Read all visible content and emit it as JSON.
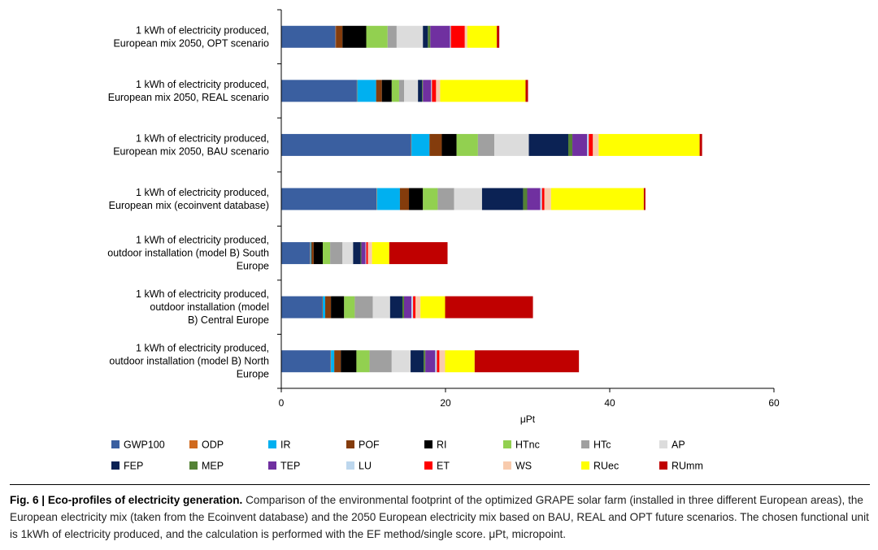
{
  "chart_data": {
    "type": "bar",
    "orientation": "horizontal",
    "stacked": true,
    "xlabel": "μPt",
    "xlim": [
      0,
      60
    ],
    "xticks": [
      0,
      20,
      40,
      60
    ],
    "grid": false,
    "legend_position": "bottom",
    "categories": [
      [
        "1 kWh of electricity produced,",
        "European mix 2050, OPT scenario"
      ],
      [
        "1 kWh of electricity produced,",
        "European mix 2050, REAL scenario"
      ],
      [
        "1 kWh of electricity produced,",
        "European mix 2050, BAU scenario"
      ],
      [
        "1 kWh of electricity produced,",
        "European mix (ecoinvent database)"
      ],
      [
        "1 kWh of electricity produced,",
        "outdoor installation (model B) South",
        "Europe"
      ],
      [
        "1 kWh of electricity produced,",
        "outdoor installation (model",
        "B) Central Europe"
      ],
      [
        "1 kWh of electricity produced,",
        "outdoor installation (model B) North",
        "Europe"
      ]
    ],
    "series": [
      {
        "name": "GWP100",
        "color": "#3a5fa0",
        "values": [
          6.6,
          9.2,
          15.8,
          11.6,
          3.5,
          5.0,
          6.0
        ]
      },
      {
        "name": "ODP",
        "color": "#d06a1e",
        "values": [
          0.05,
          0.05,
          0.05,
          0.05,
          0.05,
          0.05,
          0.05
        ]
      },
      {
        "name": "IR",
        "color": "#00b0f0",
        "values": [
          0.0,
          2.3,
          2.2,
          2.8,
          0.1,
          0.3,
          0.4
        ]
      },
      {
        "name": "POF",
        "color": "#843c0c",
        "values": [
          0.8,
          0.7,
          1.5,
          1.1,
          0.3,
          0.7,
          0.8
        ]
      },
      {
        "name": "RI",
        "color": "#000000",
        "values": [
          2.9,
          1.2,
          1.8,
          1.7,
          1.1,
          1.6,
          1.9
        ]
      },
      {
        "name": "HTnc",
        "color": "#92d050",
        "values": [
          2.6,
          0.9,
          2.6,
          1.8,
          0.9,
          1.3,
          1.6
        ]
      },
      {
        "name": "HTc",
        "color": "#a0a0a0",
        "values": [
          1.1,
          0.6,
          2.0,
          2.0,
          1.5,
          2.2,
          2.7
        ]
      },
      {
        "name": "AP",
        "color": "#dcdcdc",
        "values": [
          3.2,
          1.7,
          4.2,
          3.4,
          1.3,
          2.1,
          2.3
        ]
      },
      {
        "name": "FEP",
        "color": "#0b2254",
        "values": [
          0.6,
          0.5,
          4.8,
          5.0,
          0.9,
          1.5,
          1.6
        ]
      },
      {
        "name": "MEP",
        "color": "#548235",
        "values": [
          0.3,
          0.1,
          0.5,
          0.5,
          0.1,
          0.2,
          0.2
        ]
      },
      {
        "name": "TEP",
        "color": "#7030a0",
        "values": [
          2.4,
          1.0,
          1.8,
          1.6,
          0.5,
          0.9,
          1.2
        ]
      },
      {
        "name": "LU",
        "color": "#bdd7ee",
        "values": [
          0.1,
          0.1,
          0.2,
          0.2,
          0.1,
          0.2,
          0.2
        ]
      },
      {
        "name": "ET",
        "color": "#ff0000",
        "values": [
          1.7,
          0.5,
          0.5,
          0.3,
          0.2,
          0.3,
          0.3
        ]
      },
      {
        "name": "WS",
        "color": "#f8cbad",
        "values": [
          0.3,
          0.5,
          0.7,
          0.8,
          0.5,
          0.6,
          0.7
        ]
      },
      {
        "name": "RUec",
        "color": "#ffff00",
        "values": [
          3.6,
          10.4,
          12.3,
          11.3,
          2.1,
          3.0,
          3.6
        ]
      },
      {
        "name": "RUmm",
        "color": "#c00000",
        "values": [
          0.3,
          0.3,
          0.3,
          0.2,
          7.1,
          10.7,
          12.7
        ]
      }
    ]
  },
  "caption": {
    "title": "Fig. 6 | Eco-profiles of electricity generation.",
    "text": "Comparison of the environmental footprint of the optimized GRAPE solar farm (installed in three different European areas), the European electricity mix (taken from the Ecoinvent database) and the 2050 European electricity mix based on BAU, REAL and OPT future scenarios. The chosen functional unit is 1kWh of electricity produced, and the calculation is performed with the EF method/single score. μPt, micropoint."
  }
}
